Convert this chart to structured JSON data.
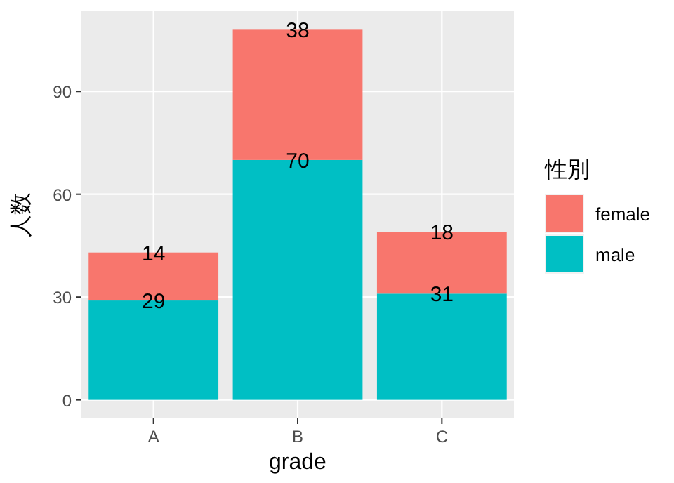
{
  "chart_data": {
    "type": "bar",
    "stacked": true,
    "categories": [
      "A",
      "B",
      "C"
    ],
    "series": [
      {
        "name": "male",
        "color": "#00bfc4",
        "values": [
          29,
          70,
          31
        ]
      },
      {
        "name": "female",
        "color": "#f8766d",
        "values": [
          14,
          38,
          18
        ]
      }
    ],
    "xlabel": "grade",
    "ylabel": "人数",
    "legend_title": "性別",
    "ylim": [
      -5.4,
      113.4
    ],
    "yticks": [
      0,
      30,
      60,
      90
    ],
    "grid": true,
    "legend": "right",
    "data_labels": true
  }
}
